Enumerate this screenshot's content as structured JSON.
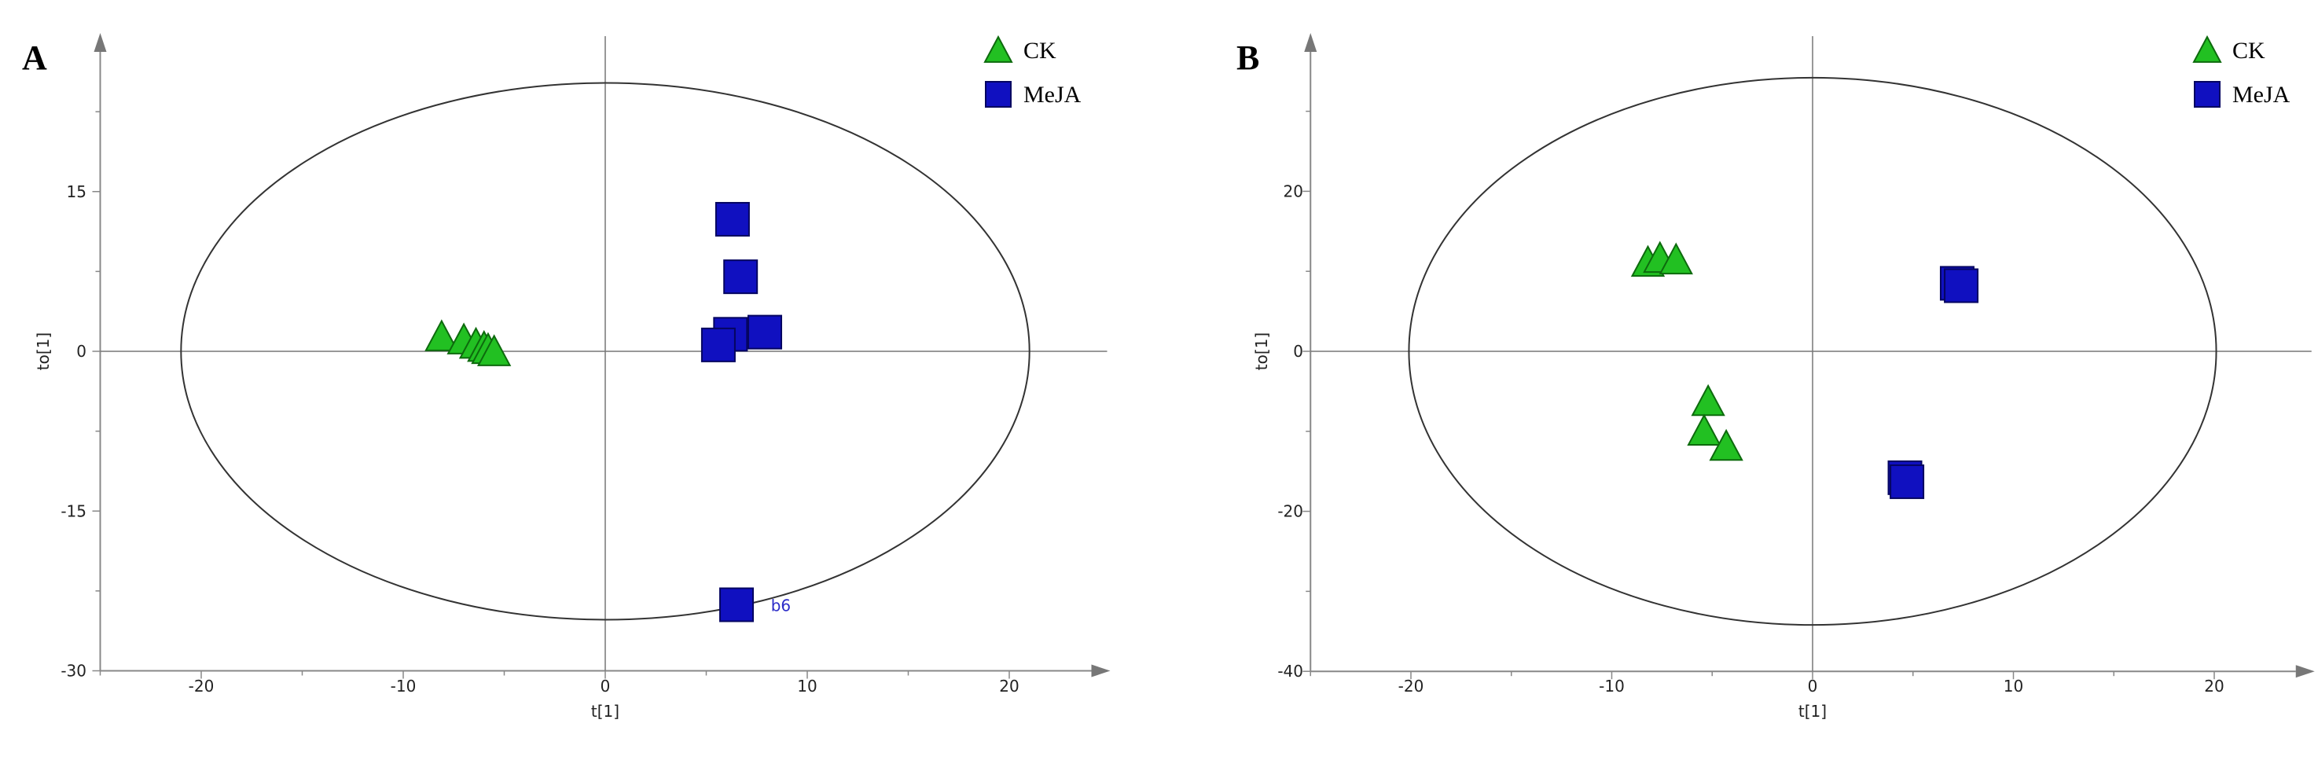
{
  "colors": {
    "ck": "#22c022",
    "ck_edge": "#0d6a0d",
    "meja": "#1010c0",
    "meja_edge": "#050560",
    "axis": "#888888",
    "ellipse": "#333333"
  },
  "chart_data": [
    {
      "type": "scatter",
      "panel": "A",
      "xlabel": "t[1]",
      "ylabel": "to[1]",
      "xlim": [
        -25,
        25
      ],
      "ylim": [
        -30,
        27
      ],
      "xticks": [
        -20,
        -10,
        0,
        10,
        20
      ],
      "yticks": [
        15,
        0,
        -15,
        -30
      ],
      "ellipse": {
        "rx": 21,
        "ry": [
          -25.2,
          25.2
        ]
      },
      "legend": {
        "position": "top-right",
        "entries": [
          {
            "name": "CK",
            "marker": "triangle"
          },
          {
            "name": "MeJA",
            "marker": "square"
          }
        ]
      },
      "series": [
        {
          "name": "CK",
          "marker": "triangle",
          "x": [
            -8.1,
            -7.0,
            -6.4,
            -6.0,
            -5.8,
            -5.5
          ],
          "y": [
            1.2,
            0.9,
            0.5,
            0.2,
            0.0,
            -0.2
          ]
        },
        {
          "name": "MeJA",
          "marker": "square",
          "x": [
            6.3,
            6.7,
            6.2,
            7.9,
            5.6,
            6.5
          ],
          "y": [
            12.4,
            7.0,
            1.6,
            1.8,
            0.6,
            -23.8
          ]
        }
      ],
      "annotations": [
        {
          "text": "b6",
          "x": 8.2,
          "y": -23.8
        }
      ]
    },
    {
      "type": "scatter",
      "panel": "B",
      "xlabel": "t[1]",
      "ylabel": "to[1]",
      "xlim": [
        -25,
        25
      ],
      "ylim": [
        -40,
        35
      ],
      "xticks": [
        -20,
        -10,
        0,
        10,
        20
      ],
      "yticks": [
        20,
        0,
        -20,
        -40
      ],
      "ellipse": {
        "rx": 20.1,
        "ry": [
          -34.2,
          34.2
        ]
      },
      "legend": {
        "position": "top-right",
        "entries": [
          {
            "name": "CK",
            "marker": "triangle"
          },
          {
            "name": "MeJA",
            "marker": "square"
          }
        ]
      },
      "series": [
        {
          "name": "CK",
          "marker": "triangle",
          "x": [
            -8.2,
            -7.6,
            -6.8,
            -5.2,
            -5.4,
            -4.3
          ],
          "y": [
            10.9,
            11.4,
            11.2,
            -6.5,
            -10.2,
            -12.1
          ]
        },
        {
          "name": "MeJA",
          "marker": "square",
          "x": [
            7.2,
            7.4,
            4.6,
            4.7
          ],
          "y": [
            8.5,
            8.2,
            -15.8,
            -16.3
          ]
        }
      ]
    }
  ]
}
